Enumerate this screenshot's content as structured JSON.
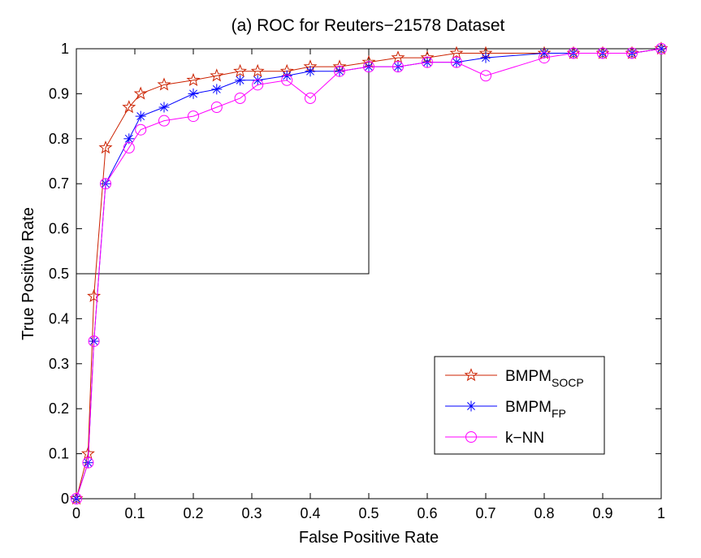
{
  "chart_data": {
    "type": "line",
    "title": "(a) ROC for Reuters−21578 Dataset",
    "xlabel": "False Positive Rate",
    "ylabel": "True Positive Rate",
    "xlim": [
      0,
      1
    ],
    "ylim": [
      0,
      1
    ],
    "x_ticks": [
      "0",
      "0.1",
      "0.2",
      "0.3",
      "0.4",
      "0.5",
      "0.6",
      "0.7",
      "0.8",
      "0.9",
      "1"
    ],
    "y_ticks": [
      "0",
      "0.1",
      "0.2",
      "0.3",
      "0.4",
      "0.5",
      "0.6",
      "0.7",
      "0.8",
      "0.9",
      "1"
    ],
    "grid": false,
    "legend_position": "bottom-right",
    "inset_box": {
      "x": [
        0,
        0.5
      ],
      "y": [
        0.5,
        1
      ]
    },
    "series": [
      {
        "name": "BMPM",
        "name_subscript": "SOCP",
        "color": "#cc2200",
        "marker": "pentagram",
        "x": [
          0,
          0.02,
          0.03,
          0.05,
          0.09,
          0.11,
          0.15,
          0.2,
          0.24,
          0.28,
          0.31,
          0.36,
          0.4,
          0.45,
          0.5,
          0.55,
          0.6,
          0.65,
          0.7,
          0.8,
          0.85,
          0.9,
          0.95,
          1
        ],
        "y": [
          0,
          0.1,
          0.45,
          0.78,
          0.87,
          0.9,
          0.92,
          0.93,
          0.94,
          0.95,
          0.95,
          0.95,
          0.96,
          0.96,
          0.97,
          0.98,
          0.98,
          0.99,
          0.99,
          0.99,
          0.99,
          0.99,
          0.99,
          1
        ]
      },
      {
        "name": "BMPM",
        "name_subscript": "FP",
        "color": "#0000ff",
        "marker": "asterisk",
        "x": [
          0,
          0.02,
          0.03,
          0.05,
          0.09,
          0.11,
          0.15,
          0.2,
          0.24,
          0.28,
          0.31,
          0.36,
          0.4,
          0.45,
          0.5,
          0.55,
          0.6,
          0.65,
          0.7,
          0.8,
          0.85,
          0.9,
          0.95,
          1
        ],
        "y": [
          0,
          0.08,
          0.35,
          0.7,
          0.8,
          0.85,
          0.87,
          0.9,
          0.91,
          0.93,
          0.93,
          0.94,
          0.95,
          0.95,
          0.96,
          0.96,
          0.97,
          0.97,
          0.98,
          0.99,
          0.99,
          0.99,
          0.99,
          1
        ]
      },
      {
        "name": "k−NN",
        "name_subscript": "",
        "color": "#ff00ff",
        "marker": "circle",
        "x": [
          0,
          0.02,
          0.03,
          0.05,
          0.09,
          0.11,
          0.15,
          0.2,
          0.24,
          0.28,
          0.31,
          0.36,
          0.4,
          0.45,
          0.5,
          0.55,
          0.6,
          0.65,
          0.7,
          0.8,
          0.85,
          0.9,
          0.95,
          1
        ],
        "y": [
          0,
          0.08,
          0.35,
          0.7,
          0.78,
          0.82,
          0.84,
          0.85,
          0.87,
          0.89,
          0.92,
          0.93,
          0.89,
          0.95,
          0.96,
          0.96,
          0.97,
          0.97,
          0.94,
          0.98,
          0.99,
          0.99,
          0.99,
          1
        ]
      }
    ]
  }
}
